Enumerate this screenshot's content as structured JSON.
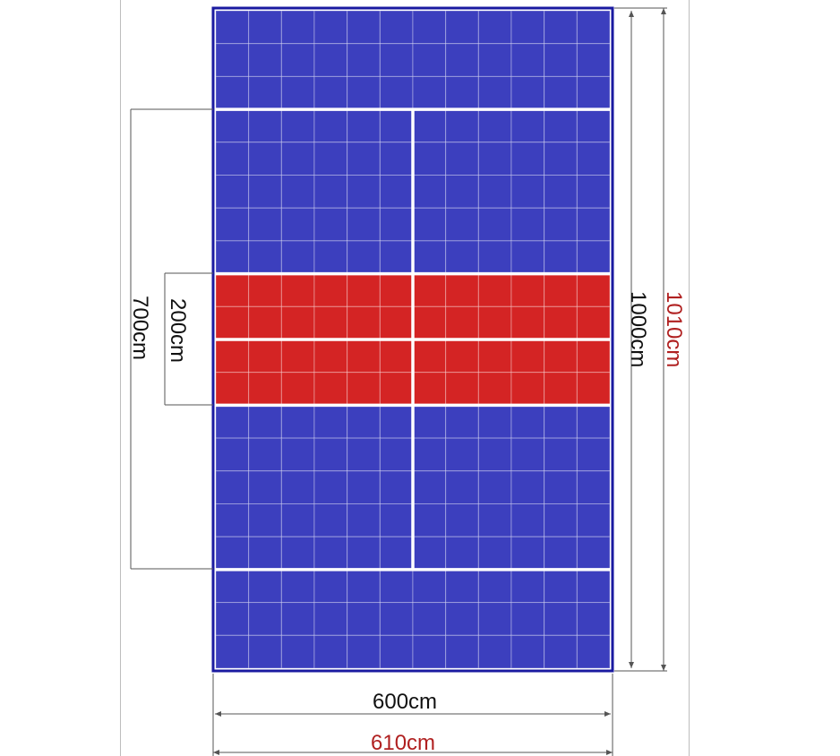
{
  "colors": {
    "tile_blue": "#3c3fbe",
    "tile_red": "#d42424",
    "court_line": "#ffffff",
    "border": "#1a1aa0",
    "dimension_line": "#555555",
    "label_black": "#111111",
    "label_red": "#b02020"
  },
  "court": {
    "tile_grid": {
      "columns": 12,
      "rows": 20
    },
    "red_zone_rows": [
      8,
      11
    ]
  },
  "dimensions": {
    "inner_width": "600cm",
    "outer_width": "610cm",
    "inner_length": "1000cm",
    "outer_length": "1010cm",
    "zone_700": "700cm",
    "zone_200": "200cm"
  }
}
